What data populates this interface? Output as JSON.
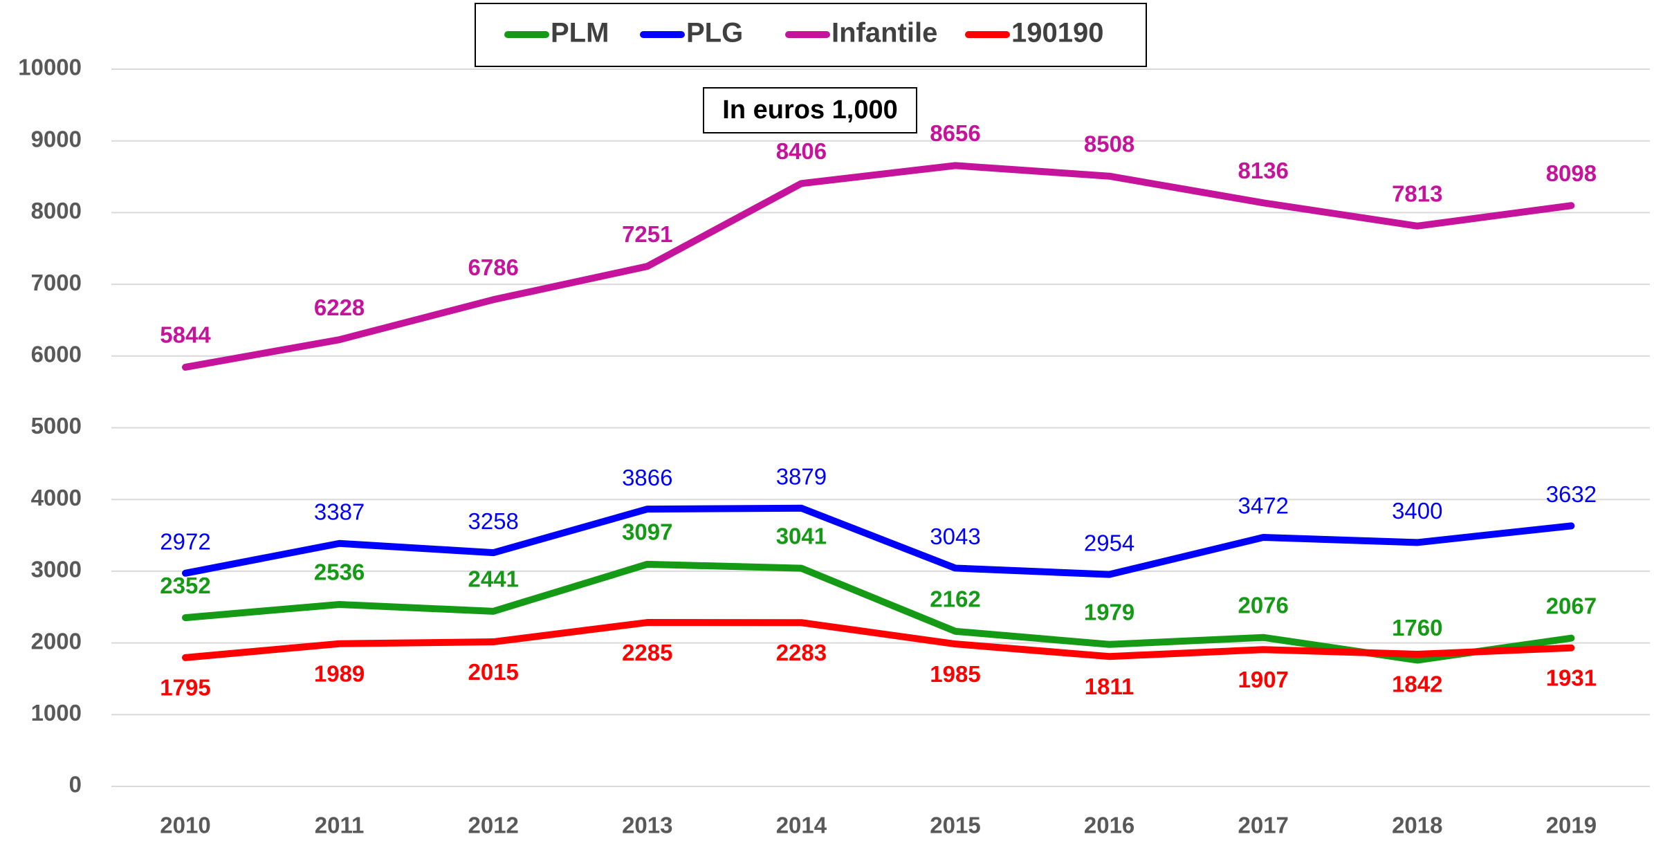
{
  "chart_data": {
    "type": "line",
    "annotation": "In euros 1,000",
    "categories": [
      "2010",
      "2011",
      "2012",
      "2013",
      "2014",
      "2015",
      "2016",
      "2017",
      "2018",
      "2019"
    ],
    "series": [
      {
        "name": "PLM",
        "color": "#149a14",
        "values": [
          2352,
          2536,
          2441,
          3097,
          3041,
          2162,
          1979,
          2076,
          1760,
          2067
        ]
      },
      {
        "name": "PLG",
        "color": "#0000ff",
        "values": [
          2972,
          3387,
          3258,
          3866,
          3879,
          3043,
          2954,
          3472,
          3400,
          3632
        ]
      },
      {
        "name": "Infantile",
        "color": "#c5139c",
        "values": [
          5844,
          6228,
          6786,
          7251,
          8406,
          8656,
          8508,
          8136,
          7813,
          8098
        ]
      },
      {
        "name": "190190",
        "color": "#ff0000",
        "values": [
          1795,
          1989,
          2015,
          2285,
          2283,
          1985,
          1811,
          1907,
          1842,
          1931
        ]
      }
    ],
    "ylim": [
      0,
      10000
    ],
    "yticks": [
      0,
      1000,
      2000,
      3000,
      4000,
      5000,
      6000,
      7000,
      8000,
      9000,
      10000
    ],
    "grid": true,
    "legend": "top"
  }
}
